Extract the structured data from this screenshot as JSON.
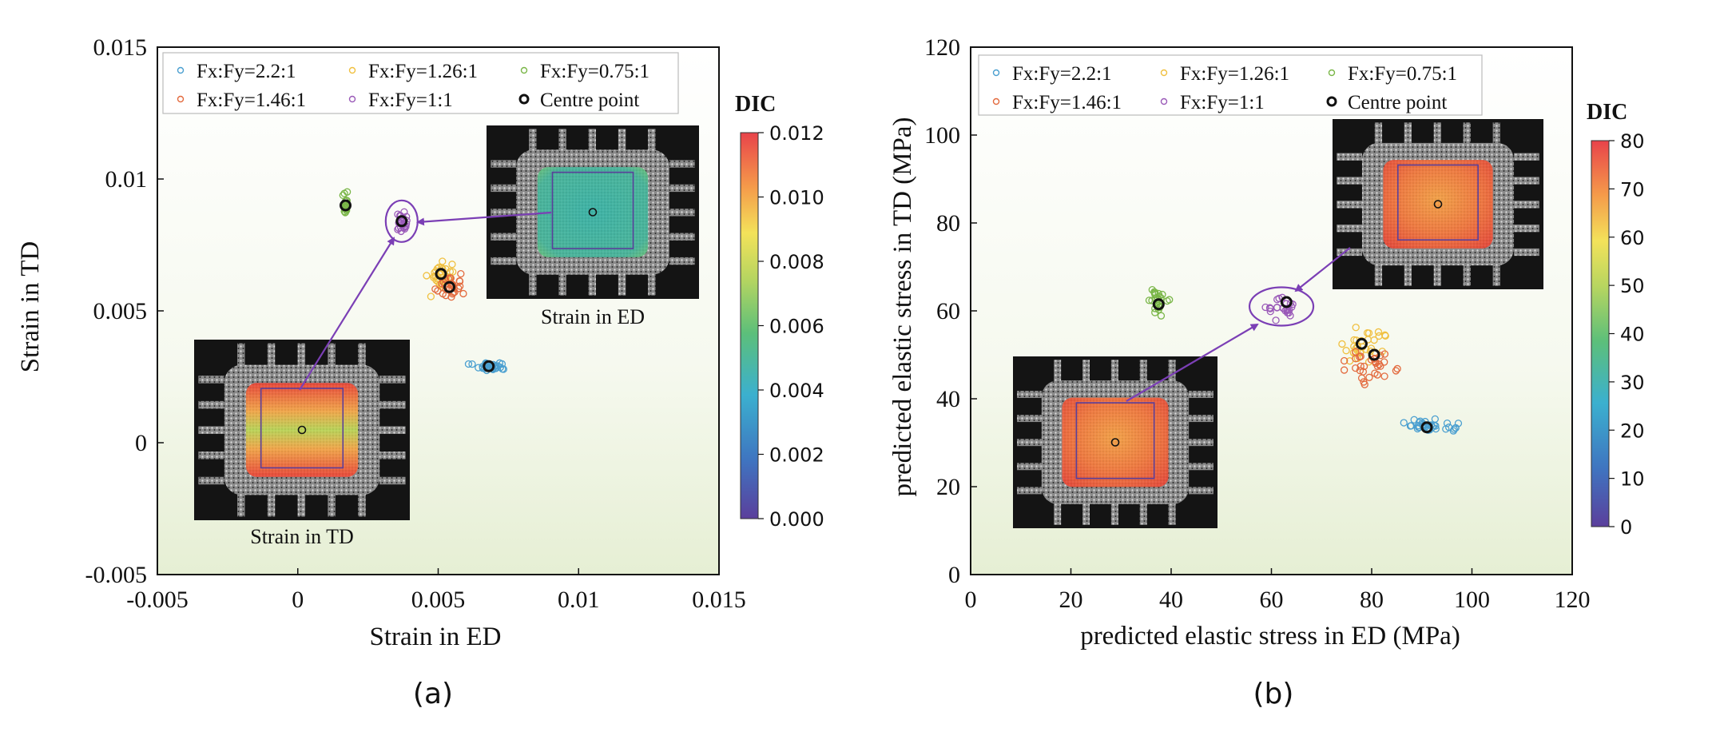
{
  "chart_data": [
    {
      "type": "scatter",
      "xlabel": "Strain in ED",
      "ylabel": "Strain in TD",
      "xlim": [
        -0.005,
        0.015
      ],
      "ylim": [
        -0.005,
        0.015
      ],
      "xticks": [
        "-0.005",
        "0",
        "0.005",
        "0.01",
        "0.015"
      ],
      "xtick_values": [
        -0.005,
        0,
        0.005,
        0.01,
        0.015
      ],
      "yticks": [
        "-0.005",
        "0",
        "0.005",
        "0.01",
        "0.015"
      ],
      "ytick_values": [
        -0.005,
        0,
        0.005,
        0.01,
        0.015
      ],
      "panel_label": "(a)",
      "colorbar": {
        "title": "DIC",
        "ticks": [
          "0.000",
          "0.002",
          "0.004",
          "0.006",
          "0.008",
          "0.010",
          "0.012"
        ]
      },
      "insets": [
        {
          "label": "Strain in ED",
          "field": "uniform-cyan"
        },
        {
          "label": "Strain in TD",
          "field": "red-green"
        }
      ],
      "legend": {
        "position": "top",
        "columns": 3
      },
      "series": [
        {
          "name": "Fx:Fy=2.2:1",
          "color": "#4a9fd0",
          "cx": 0.0068,
          "cy": 0.0029,
          "sx": 0.00045,
          "sy": 0.00012,
          "n": 30
        },
        {
          "name": "Fx:Fy=1.26:1",
          "color": "#f0c040",
          "cx": 0.0051,
          "cy": 0.0064,
          "sx": 0.0003,
          "sy": 0.0004,
          "n": 32
        },
        {
          "name": "Fx:Fy=0.75:1",
          "color": "#7ab648",
          "cx": 0.0017,
          "cy": 0.009,
          "sx": 7e-05,
          "sy": 0.0003,
          "n": 22
        },
        {
          "name": "Fx:Fy=1.46:1",
          "color": "#e36a3e",
          "cx": 0.0054,
          "cy": 0.0059,
          "sx": 0.00035,
          "sy": 0.0003,
          "n": 28
        },
        {
          "name": "Fx:Fy=1:1",
          "color": "#9a5ab8",
          "cx": 0.0037,
          "cy": 0.0084,
          "sx": 0.00015,
          "sy": 0.00025,
          "n": 22
        }
      ],
      "centre_points": {
        "name": "Centre point",
        "points": [
          [
            0.0068,
            0.0029
          ],
          [
            0.0051,
            0.0064
          ],
          [
            0.0017,
            0.009
          ],
          [
            0.0054,
            0.0059
          ],
          [
            0.0037,
            0.0084
          ]
        ]
      }
    },
    {
      "type": "scatter",
      "xlabel": "predicted elastic stress in ED (MPa)",
      "ylabel": "predicted elastic stress in TD (MPa)",
      "xlim": [
        0,
        120
      ],
      "ylim": [
        0,
        120
      ],
      "xticks": [
        "0",
        "20",
        "40",
        "60",
        "80",
        "100",
        "120"
      ],
      "xtick_values": [
        0,
        20,
        40,
        60,
        80,
        100,
        120
      ],
      "yticks": [
        "0",
        "20",
        "40",
        "60",
        "80",
        "100",
        "120"
      ],
      "ytick_values": [
        0,
        20,
        40,
        60,
        80,
        100,
        120
      ],
      "panel_label": "(b)",
      "colorbar": {
        "title": "DIC",
        "ticks": [
          "0",
          "10",
          "20",
          "30",
          "40",
          "50",
          "60",
          "70",
          "80"
        ]
      },
      "insets": [
        {
          "label": "",
          "field": "red-yellow"
        },
        {
          "label": "",
          "field": "red-yellow"
        }
      ],
      "legend": {
        "position": "top",
        "columns": 3
      },
      "series": [
        {
          "name": "Fx:Fy=2.2:1",
          "color": "#4a9fd0",
          "cx": 92,
          "cy": 34,
          "sx": 5,
          "sy": 1,
          "n": 34
        },
        {
          "name": "Fx:Fy=1.26:1",
          "color": "#f0c040",
          "cx": 79,
          "cy": 52,
          "sx": 3,
          "sy": 3,
          "n": 32
        },
        {
          "name": "Fx:Fy=0.75:1",
          "color": "#7ab648",
          "cx": 37.5,
          "cy": 62,
          "sx": 1.5,
          "sy": 1.8,
          "n": 26
        },
        {
          "name": "Fx:Fy=1.46:1",
          "color": "#e36a3e",
          "cx": 80,
          "cy": 48,
          "sx": 4,
          "sy": 2.5,
          "n": 32
        },
        {
          "name": "Fx:Fy=1:1",
          "color": "#9a5ab8",
          "cx": 62,
          "cy": 61,
          "sx": 2,
          "sy": 1.6,
          "n": 24
        }
      ],
      "centre_points": {
        "name": "Centre point",
        "points": [
          [
            91,
            33.5
          ],
          [
            78,
            52.5
          ],
          [
            37.5,
            61.5
          ],
          [
            80.5,
            50
          ],
          [
            63,
            62
          ]
        ]
      }
    }
  ]
}
